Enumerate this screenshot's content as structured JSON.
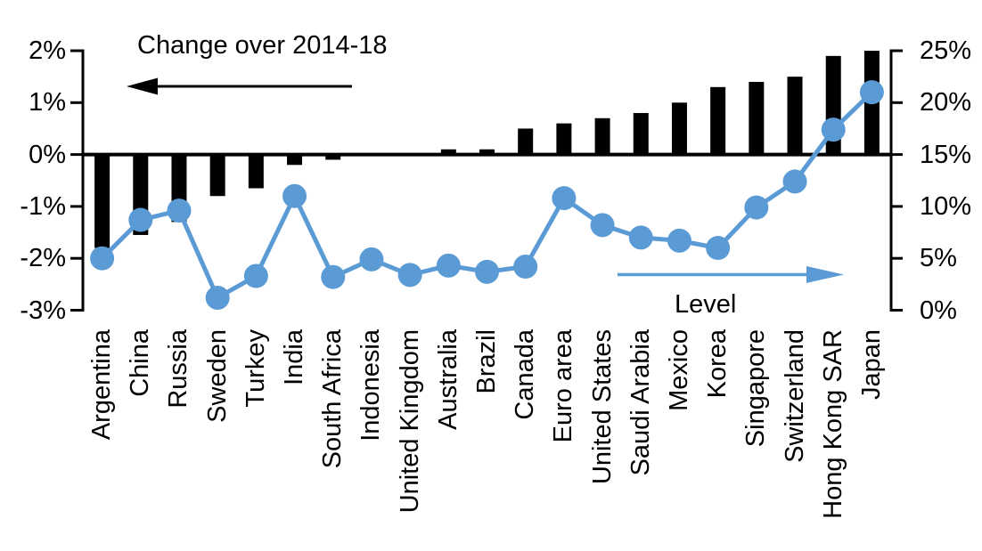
{
  "chart_data": {
    "type": "combo_bar_line",
    "title": "Change over 2014-18",
    "categories": [
      "Argentina",
      "China",
      "Russia",
      "Sweden",
      "Turkey",
      "India",
      "South Africa",
      "Indonesia",
      "United Kingdom",
      "Australia",
      "Brazil",
      "Canada",
      "Euro area",
      "United States",
      "Saudi Arabia",
      "Mexico",
      "Korea",
      "Singapore",
      "Switzerland",
      "Hong Kong SAR",
      "Japan"
    ],
    "series": [
      {
        "name": "Change over 2014-18",
        "type": "bar",
        "axis": "left",
        "color": "#000000",
        "values": [
          -1.8,
          -1.55,
          -1.3,
          -0.8,
          -0.65,
          -0.2,
          -0.1,
          0,
          0,
          0.1,
          0.1,
          0.5,
          0.6,
          0.7,
          0.8,
          1.0,
          1.3,
          1.4,
          1.5,
          1.9,
          2.0
        ]
      },
      {
        "name": "Level",
        "type": "line",
        "axis": "right",
        "color": "#5B9BD5",
        "values": [
          5.0,
          8.7,
          9.6,
          1.2,
          3.3,
          11.0,
          3.2,
          4.9,
          3.4,
          4.3,
          3.7,
          4.2,
          10.8,
          8.2,
          7.0,
          6.7,
          6.0,
          9.9,
          12.4,
          17.4,
          21.0
        ]
      }
    ],
    "left_axis": {
      "range": [
        -3,
        2
      ],
      "ticks": [
        2,
        1,
        0,
        -1,
        -2,
        -3
      ],
      "tick_labels": [
        "2%",
        "1%",
        "0%",
        "-1%",
        "-2%",
        "-3%"
      ]
    },
    "right_axis": {
      "range": [
        0,
        25
      ],
      "ticks": [
        25,
        20,
        15,
        10,
        5,
        0
      ],
      "tick_labels": [
        "25%",
        "20%",
        "15%",
        "10%",
        "5%",
        "0%"
      ]
    },
    "grid": false,
    "legend": "none",
    "annotations": {
      "bar_series_label": {
        "text": "Change over 2014-18",
        "arrow": "left",
        "color": "#000000"
      },
      "line_series_label": {
        "text": "Level",
        "arrow": "right",
        "color": "#5B9BD5"
      }
    }
  }
}
